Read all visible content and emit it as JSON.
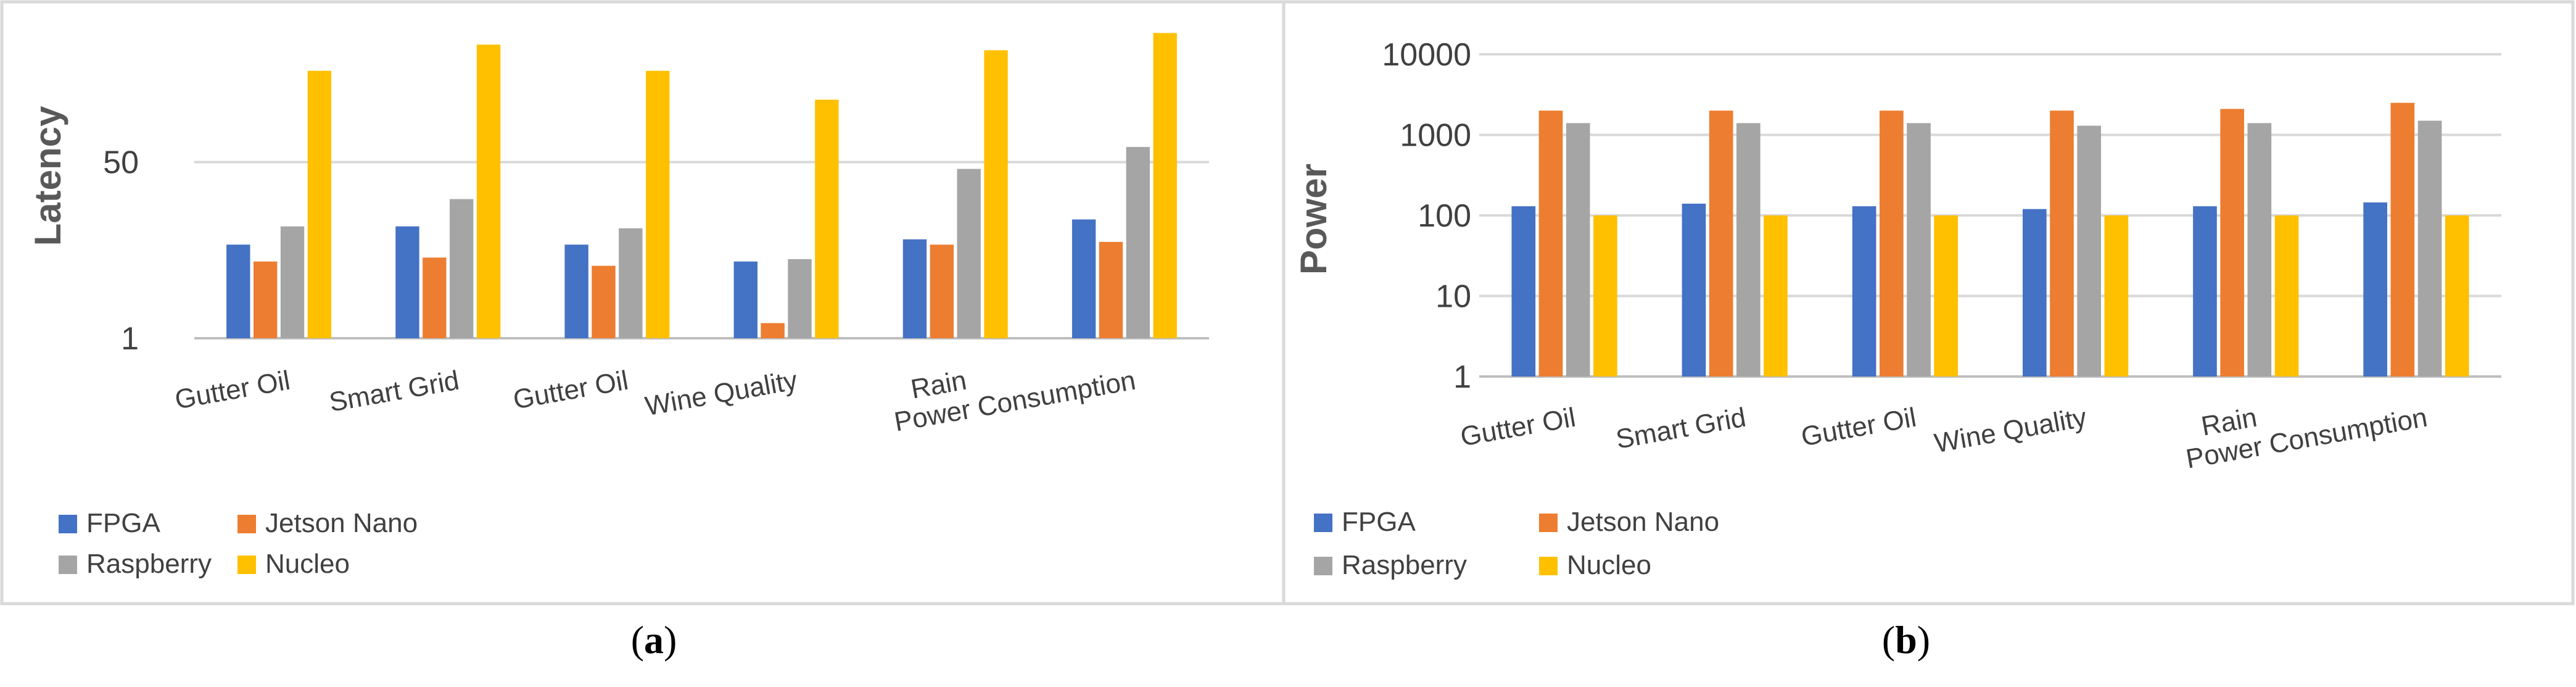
{
  "chart_data": [
    {
      "type": "bar",
      "panel": "a",
      "ylabel": "Latency",
      "yscale": "log",
      "ylim": [
        1,
        1300
      ],
      "yticks": [
        {
          "value": 1,
          "label": "1"
        },
        {
          "value": 50,
          "label": "50"
        }
      ],
      "categories": [
        "Gutter Oil",
        "Smart Grid",
        "Gutter Oil",
        "Wine Quality",
        "Rain",
        "Power Consumption"
      ],
      "series": [
        {
          "name": "FPGA",
          "color": "#4472c4",
          "values": [
            8,
            12,
            8,
            5.5,
            9,
            14
          ]
        },
        {
          "name": "Jetson Nano",
          "color": "#ed7d31",
          "values": [
            5.5,
            6,
            5,
            1.4,
            8,
            8.5
          ]
        },
        {
          "name": "Raspberry",
          "color": "#a5a5a5",
          "values": [
            12,
            22,
            11.5,
            5.8,
            43,
            70
          ]
        },
        {
          "name": "Nucleo",
          "color": "#ffc000",
          "values": [
            380,
            680,
            380,
            200,
            600,
            880
          ]
        }
      ],
      "legend_position": "bottom-left",
      "grid": true
    },
    {
      "type": "bar",
      "panel": "b",
      "ylabel": "Power",
      "yscale": "log",
      "ylim": [
        1,
        10000
      ],
      "yticks": [
        {
          "value": 1,
          "label": "1"
        },
        {
          "value": 10,
          "label": "10"
        },
        {
          "value": 100,
          "label": "100"
        },
        {
          "value": 1000,
          "label": "1000"
        },
        {
          "value": 10000,
          "label": "10000"
        }
      ],
      "categories": [
        "Gutter Oil",
        "Smart Grid",
        "Gutter Oil",
        "Wine Quality",
        "Rain",
        "Power Consumption"
      ],
      "series": [
        {
          "name": "FPGA",
          "color": "#4472c4",
          "values": [
            130,
            140,
            130,
            120,
            130,
            145
          ]
        },
        {
          "name": "Jetson Nano",
          "color": "#ed7d31",
          "values": [
            2000,
            2000,
            2000,
            2000,
            2100,
            2500
          ]
        },
        {
          "name": "Raspberry",
          "color": "#a5a5a5",
          "values": [
            1400,
            1400,
            1400,
            1300,
            1400,
            1500
          ]
        },
        {
          "name": "Nucleo",
          "color": "#ffc000",
          "values": [
            100,
            100,
            100,
            100,
            100,
            100
          ]
        }
      ],
      "legend_position": "bottom-left",
      "grid": true
    }
  ],
  "captions": {
    "a": "a",
    "b": "b"
  }
}
